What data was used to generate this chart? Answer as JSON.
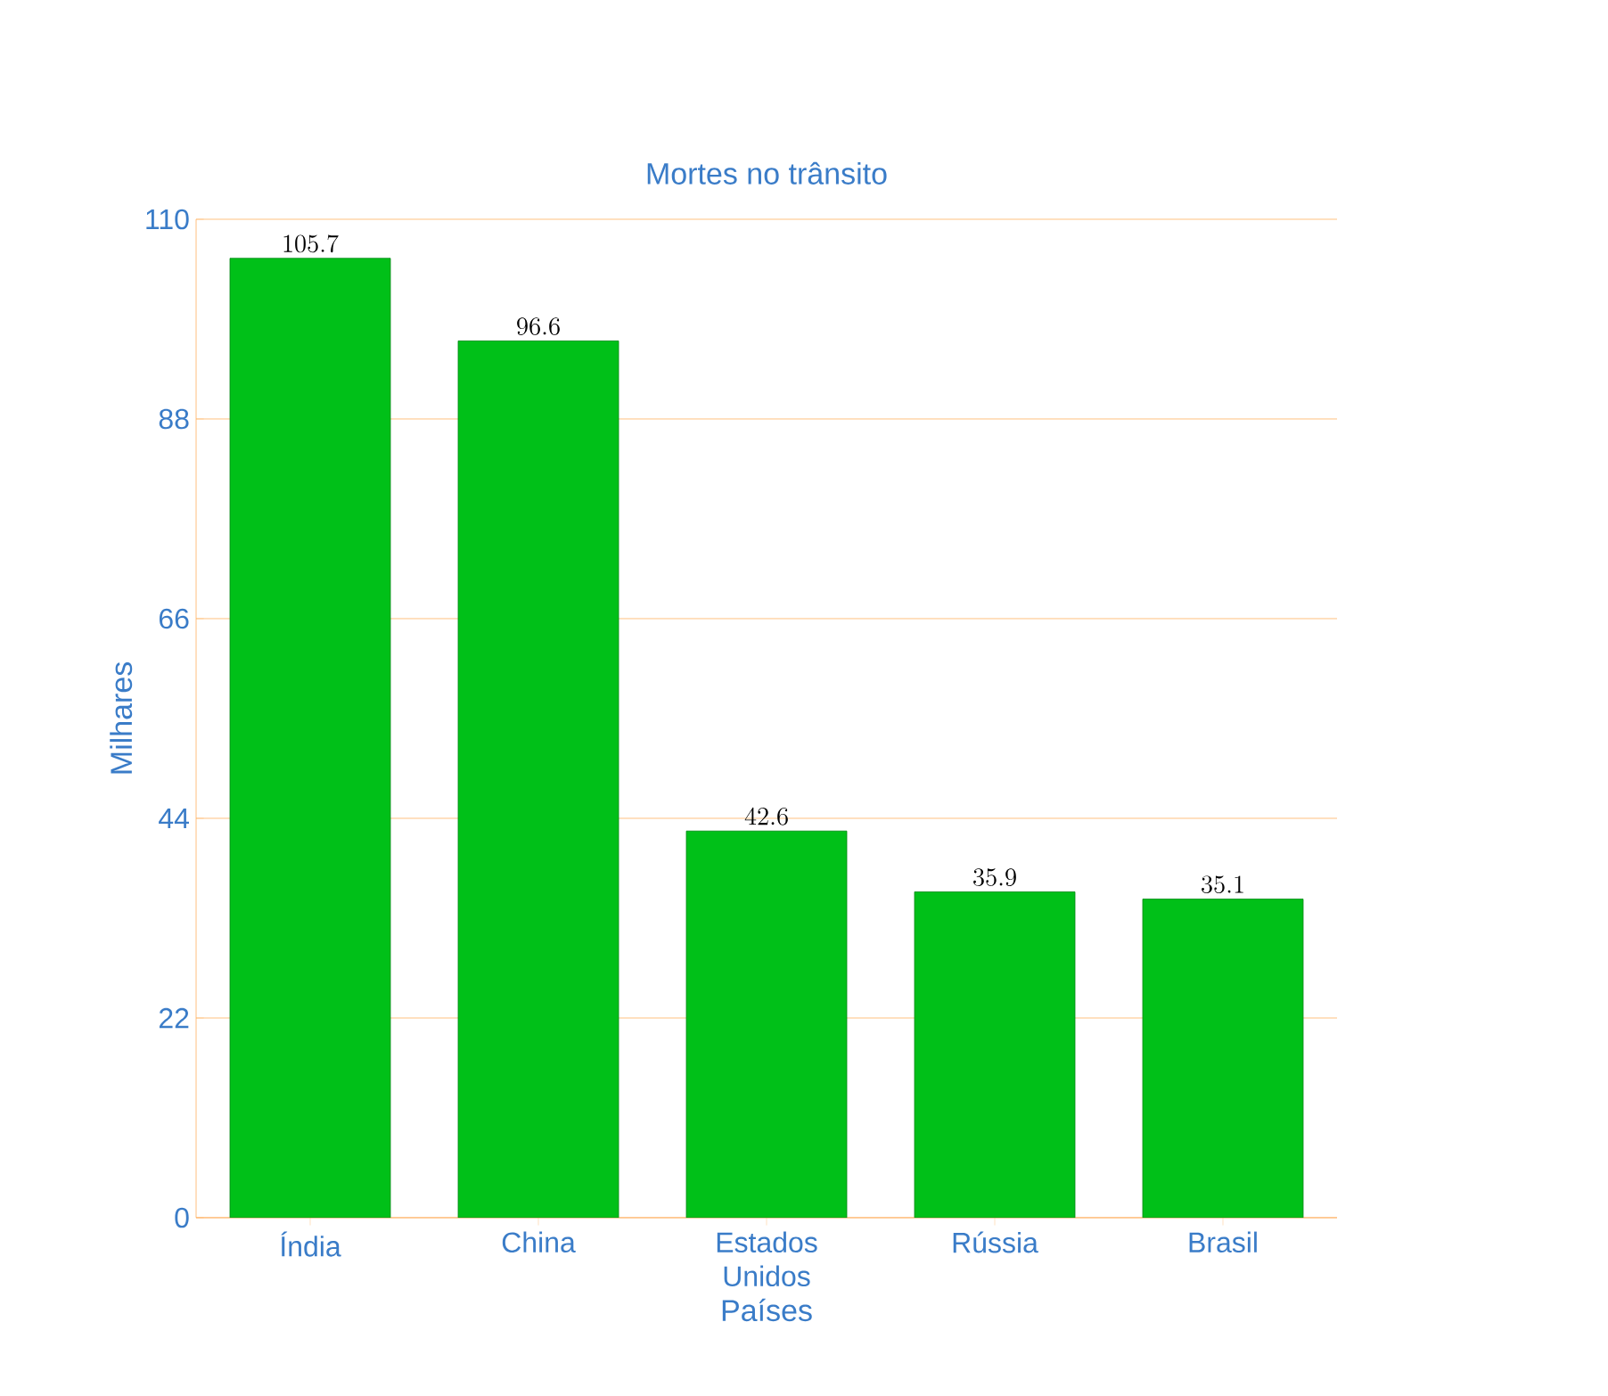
{
  "chart_data": {
    "type": "bar",
    "title": "Mortes no trânsito",
    "xlabel": "Países",
    "ylabel": "Milhares",
    "categories": [
      "Índia",
      "China",
      "Estados Unidos",
      "Rússia",
      "Brasil"
    ],
    "values": [
      105.7,
      96.6,
      42.6,
      35.9,
      35.1
    ],
    "color": "#00c018",
    "ylim": [
      0,
      110
    ],
    "yticks": [
      0,
      22,
      44,
      66,
      88,
      110
    ],
    "grid": "y",
    "data_labels": true
  }
}
